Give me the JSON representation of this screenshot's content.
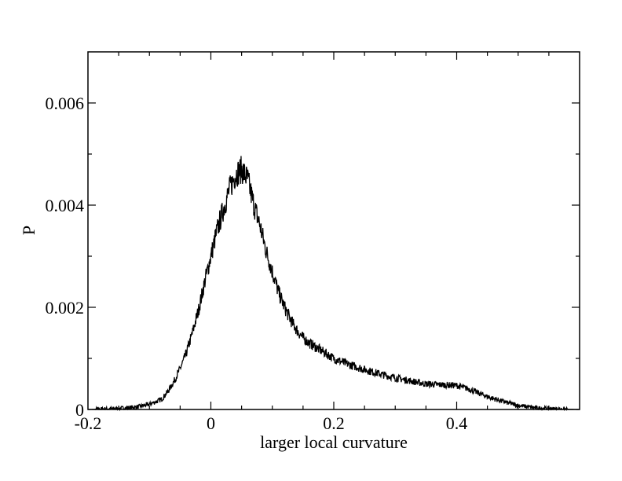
{
  "chart_data": {
    "type": "line",
    "title": "",
    "xlabel": "larger local curvature",
    "ylabel": "P",
    "xlim": [
      -0.2,
      0.6
    ],
    "ylim": [
      0,
      0.007
    ],
    "x_ticks": [
      -0.2,
      0,
      0.2,
      0.4
    ],
    "x_tick_labels": [
      "-0.2",
      "0",
      "0.2",
      "0.4"
    ],
    "x_minor_step": 0.05,
    "y_ticks": [
      0,
      0.002,
      0.004,
      0.006
    ],
    "y_tick_labels": [
      "0",
      "0.002",
      "0.004",
      "0.006"
    ],
    "y_minor_step": 0.001,
    "grid": false,
    "legend": "none",
    "series": [
      {
        "color": "#000000",
        "x": [
          -0.2,
          -0.15,
          -0.12,
          -0.1,
          -0.09,
          -0.08,
          -0.07,
          -0.06,
          -0.05,
          -0.04,
          -0.03,
          -0.02,
          -0.01,
          0.0,
          0.01,
          0.02,
          0.03,
          0.04,
          0.05,
          0.06,
          0.07,
          0.08,
          0.09,
          0.1,
          0.11,
          0.12,
          0.13,
          0.14,
          0.15,
          0.16,
          0.18,
          0.2,
          0.22,
          0.25,
          0.28,
          0.3,
          0.32,
          0.35,
          0.38,
          0.4,
          0.42,
          0.45,
          0.48,
          0.5,
          0.53,
          0.56,
          0.6
        ],
        "y": [
          0.0,
          2e-05,
          5e-05,
          0.0001,
          0.00015,
          0.0002,
          0.00035,
          0.00055,
          0.0008,
          0.0011,
          0.0015,
          0.00195,
          0.0025,
          0.003,
          0.0035,
          0.0039,
          0.0043,
          0.0046,
          0.0047,
          0.0045,
          0.004,
          0.0036,
          0.0031,
          0.0027,
          0.0023,
          0.002,
          0.00175,
          0.00155,
          0.0014,
          0.0013,
          0.00115,
          0.001,
          0.0009,
          0.00078,
          0.00068,
          0.00062,
          0.00057,
          0.0005,
          0.00048,
          0.00047,
          0.0004,
          0.00025,
          0.00014,
          8e-05,
          3e-05,
          1e-05,
          0.0
        ]
      }
    ]
  }
}
